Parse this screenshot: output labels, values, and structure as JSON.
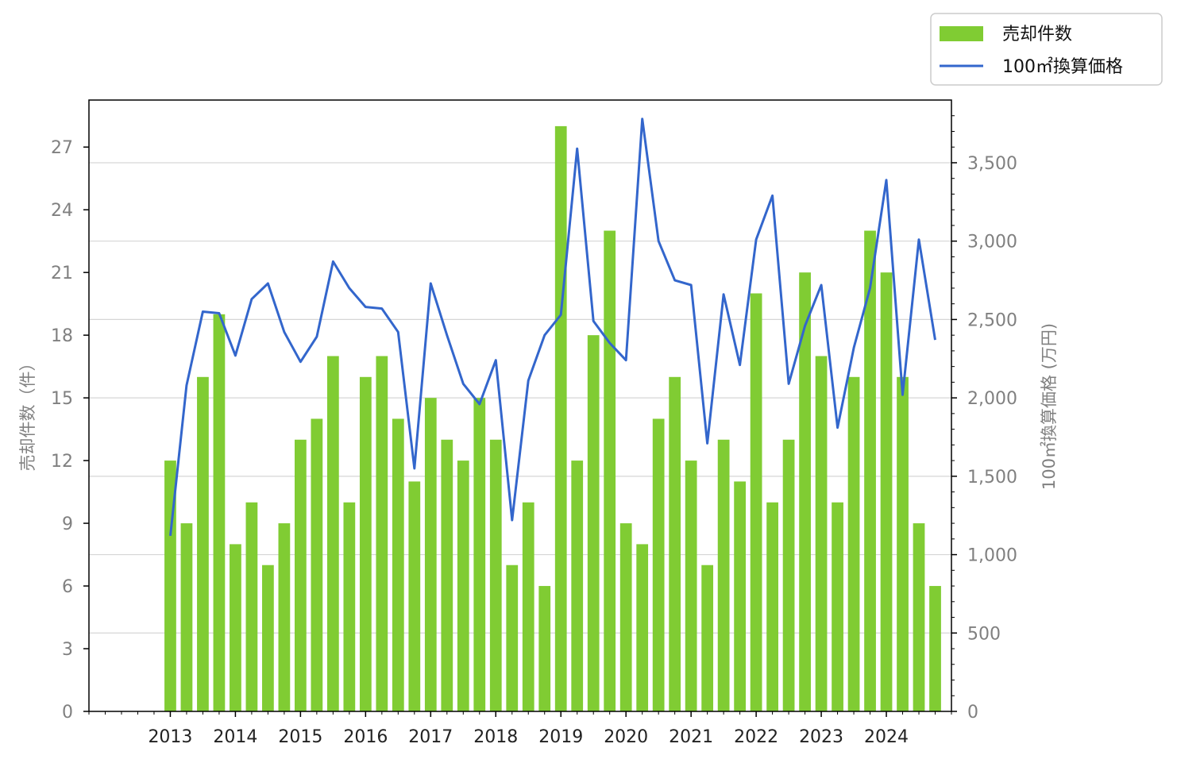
{
  "chart_data": {
    "type": "bar",
    "x": [
      2013.0,
      2013.25,
      2013.5,
      2013.75,
      2014.0,
      2014.25,
      2014.5,
      2014.75,
      2015.0,
      2015.25,
      2015.5,
      2015.75,
      2016.0,
      2016.25,
      2016.5,
      2016.75,
      2017.0,
      2017.25,
      2017.5,
      2017.75,
      2018.0,
      2018.25,
      2018.5,
      2018.75,
      2019.0,
      2019.25,
      2019.5,
      2019.75,
      2020.0,
      2020.25,
      2020.5,
      2020.75,
      2021.0,
      2021.25,
      2021.5,
      2021.75,
      2022.0,
      2022.25,
      2022.5,
      2022.75,
      2023.0,
      2023.25,
      2023.5,
      2023.75,
      2024.0,
      2024.25,
      2024.5,
      2024.75
    ],
    "series": [
      {
        "name": "売却件数",
        "type": "bar",
        "axis": "left",
        "color": "#80cc33",
        "values": [
          12,
          9,
          16,
          19,
          8,
          10,
          7,
          9,
          13,
          14,
          17,
          10,
          16,
          17,
          14,
          11,
          15,
          13,
          12,
          15,
          13,
          7,
          10,
          6,
          28,
          12,
          18,
          23,
          9,
          8,
          14,
          16,
          12,
          7,
          13,
          11,
          20,
          10,
          13,
          21,
          17,
          10,
          16,
          23,
          21,
          16,
          9,
          6
        ]
      },
      {
        "name": "100㎡換算価格",
        "type": "line",
        "axis": "right",
        "color": "#3366cc",
        "values": [
          1120,
          2080,
          2550,
          2540,
          2270,
          2630,
          2730,
          2420,
          2230,
          2390,
          2870,
          2700,
          2580,
          2570,
          2420,
          1550,
          2730,
          2400,
          2090,
          1960,
          2240,
          1220,
          2110,
          2400,
          2530,
          3590,
          2490,
          2350,
          2240,
          3780,
          3000,
          2750,
          2720,
          1710,
          2660,
          2210,
          3010,
          3290,
          2090,
          2460,
          2720,
          1810,
          2320,
          2700,
          3390,
          2020,
          3010,
          2370
        ]
      }
    ],
    "xticks": [
      "2013",
      "2014",
      "2015",
      "2016",
      "2017",
      "2018",
      "2019",
      "2020",
      "2021",
      "2022",
      "2023",
      "2024"
    ],
    "yticks_left": [
      "0",
      "3",
      "6",
      "9",
      "12",
      "15",
      "18",
      "21",
      "24",
      "27"
    ],
    "yticks_right": [
      "0",
      "500",
      "1,000",
      "1,500",
      "2,000",
      "2,500",
      "3,000",
      "3,500"
    ],
    "ylabel_left": "売却件数（件）",
    "ylabel_right": "100㎡換算価格 (万円)",
    "ylim_left": [
      0,
      29.25
    ],
    "ylim_right": [
      0,
      3900
    ],
    "xlim": [
      2011.75,
      2025.0
    ],
    "grid": "horizontal, right axis major ticks",
    "legend_position": "top-right, outside plot area"
  }
}
